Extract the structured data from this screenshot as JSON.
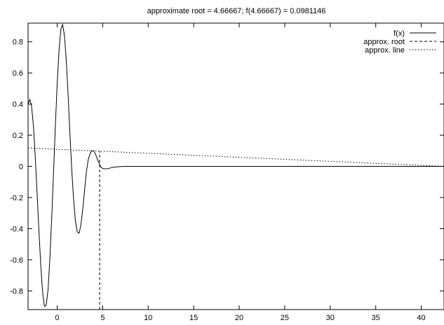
{
  "chart_data": {
    "type": "line",
    "title": "approximate root = 4.66667; f(4.66667) = 0.0981146",
    "xlabel": "",
    "ylabel": "",
    "xlim": [
      -3.2,
      42.5
    ],
    "ylim": [
      -0.92,
      0.92
    ],
    "x_ticks": [
      {
        "value": 0,
        "label": "0"
      },
      {
        "value": 5,
        "label": "5"
      },
      {
        "value": 10,
        "label": "10"
      },
      {
        "value": 15,
        "label": "15"
      },
      {
        "value": 20,
        "label": "20"
      },
      {
        "value": 25,
        "label": "25"
      },
      {
        "value": 30,
        "label": "30"
      },
      {
        "value": 35,
        "label": "35"
      },
      {
        "value": 40,
        "label": "40"
      }
    ],
    "y_ticks": [
      {
        "value": 0.8,
        "label": "0.8"
      },
      {
        "value": 0.6,
        "label": "0.6"
      },
      {
        "value": 0.4,
        "label": "0.4"
      },
      {
        "value": 0.2,
        "label": "0.2"
      },
      {
        "value": 0,
        "label": "0"
      },
      {
        "value": -0.2,
        "label": "-0.2"
      },
      {
        "value": -0.4,
        "label": "-0.4"
      },
      {
        "value": -0.6,
        "label": "-0.6"
      },
      {
        "value": -0.8,
        "label": "-0.8"
      }
    ],
    "grid": false,
    "legend": "top-right",
    "series": [
      {
        "name": "f(x)",
        "style": "solid",
        "x": [
          -3.2,
          -3.0,
          -2.8,
          -2.6,
          -2.4,
          -2.2,
          -2.0,
          -1.8,
          -1.6,
          -1.4,
          -1.2,
          -1.0,
          -0.8,
          -0.6,
          -0.4,
          -0.2,
          0.0,
          0.2,
          0.4,
          0.6,
          0.8,
          1.0,
          1.2,
          1.4,
          1.6,
          1.8,
          2.0,
          2.2,
          2.4,
          2.6,
          2.8,
          3.0,
          3.2,
          3.4,
          3.6,
          3.8,
          4.0,
          4.2,
          4.4,
          4.6,
          4.8,
          5.0,
          5.2,
          5.4,
          5.6,
          5.8,
          6.0,
          6.2,
          6.4,
          6.6,
          6.8,
          7.0,
          7.2,
          7.4,
          7.6,
          7.8,
          8.0,
          8.5,
          9.0,
          10,
          12,
          15,
          20,
          25,
          30,
          35,
          40,
          42.5
        ],
        "y": [
          0.4,
          0.43,
          0.38,
          0.25,
          0.05,
          -0.18,
          -0.42,
          -0.64,
          -0.81,
          -0.9,
          -0.89,
          -0.79,
          -0.59,
          -0.33,
          -0.04,
          0.26,
          0.53,
          0.74,
          0.88,
          0.91,
          0.84,
          0.68,
          0.46,
          0.21,
          -0.02,
          -0.21,
          -0.35,
          -0.42,
          -0.43,
          -0.38,
          -0.28,
          -0.16,
          -0.04,
          0.04,
          0.08,
          0.1,
          0.1,
          0.08,
          0.05,
          0.02,
          -0.005,
          -0.013,
          -0.016,
          -0.016,
          -0.014,
          -0.011,
          -0.008,
          -0.006,
          -0.004,
          -0.003,
          -0.002,
          -0.001,
          -0.0005,
          0.0,
          0.0,
          0.0,
          0.0,
          0.0,
          0.0,
          0.0,
          0.0,
          0.0,
          0.0,
          0.0,
          0.0,
          0.0,
          0.0,
          0.0
        ]
      },
      {
        "name": "approx. root",
        "style": "dashed",
        "x": [
          4.66667,
          4.66667
        ],
        "y": [
          -0.92,
          0.0981146
        ]
      },
      {
        "name": "approx. line",
        "style": "dotted",
        "x": [
          -3.2,
          42.5
        ],
        "y": [
          0.118,
          0.0
        ]
      }
    ]
  }
}
